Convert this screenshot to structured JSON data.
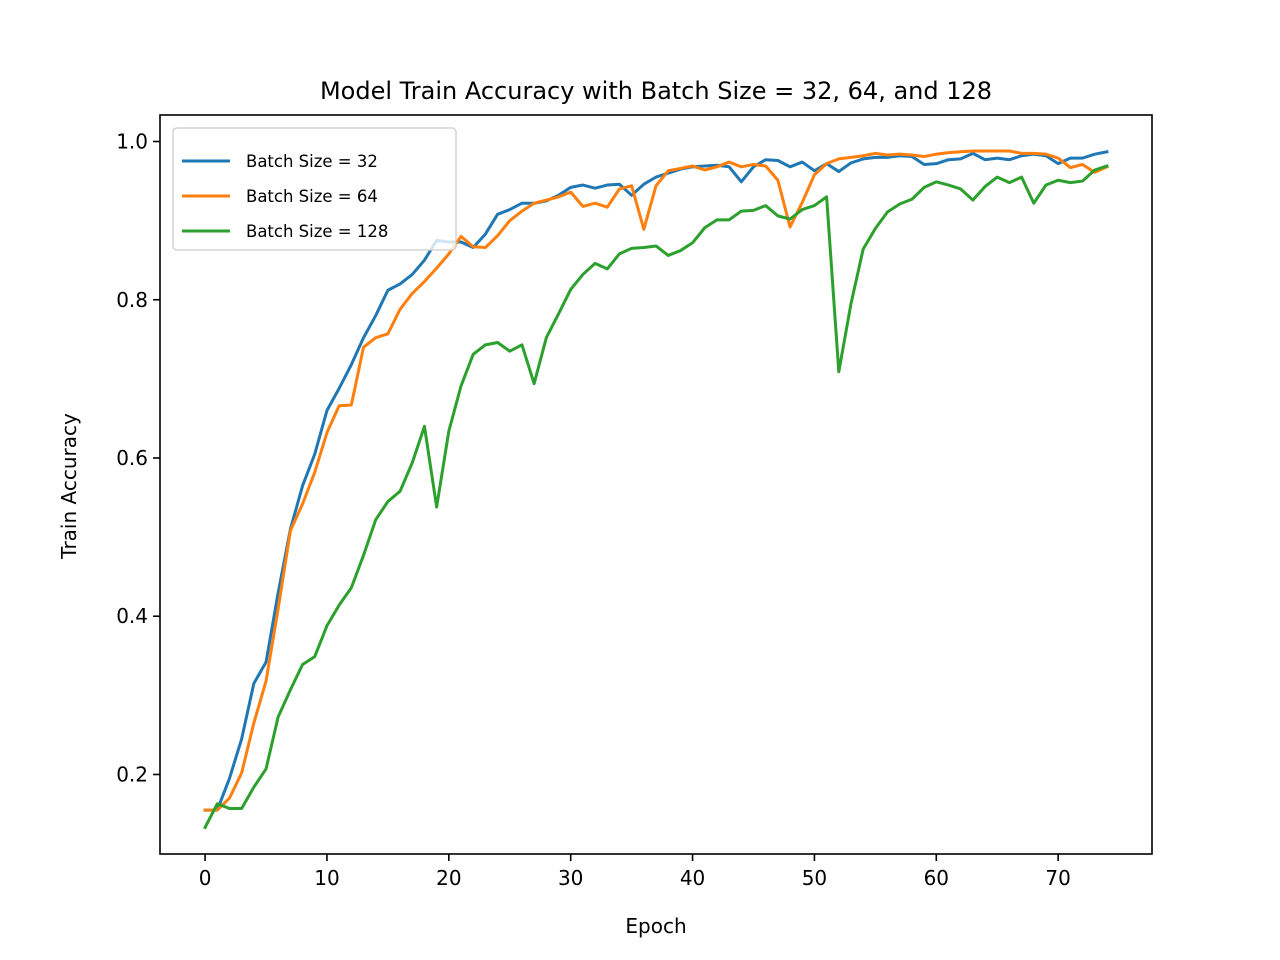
{
  "chart_data": {
    "type": "line",
    "title": "Model Train Accuracy with Batch Size = 32, 64, and 128",
    "xlabel": "Epoch",
    "ylabel": "Train Accuracy",
    "xlim": [
      -3.7,
      77.7
    ],
    "ylim": [
      0.0995,
      1.0335
    ],
    "xticks": [
      0,
      10,
      20,
      30,
      40,
      50,
      60,
      70
    ],
    "xtick_labels": [
      "0",
      "10",
      "20",
      "30",
      "40",
      "50",
      "60",
      "70"
    ],
    "yticks": [
      0.2,
      0.4,
      0.6,
      0.8,
      1.0
    ],
    "ytick_labels": [
      "0.2",
      "0.4",
      "0.6",
      "0.8",
      "1.0"
    ],
    "grid": false,
    "legend_position": "upper-left",
    "x": [
      0,
      1,
      2,
      3,
      4,
      5,
      6,
      7,
      8,
      9,
      10,
      11,
      12,
      13,
      14,
      15,
      16,
      17,
      18,
      19,
      20,
      21,
      22,
      23,
      24,
      25,
      26,
      27,
      28,
      29,
      30,
      31,
      32,
      33,
      34,
      35,
      36,
      37,
      38,
      39,
      40,
      41,
      42,
      43,
      44,
      45,
      46,
      47,
      48,
      49,
      50,
      51,
      52,
      53,
      54,
      55,
      56,
      57,
      58,
      59,
      60,
      61,
      62,
      63,
      64,
      65,
      66,
      67,
      68,
      69,
      70,
      71,
      72,
      73,
      74
    ],
    "series": [
      {
        "name": "Batch Size = 32",
        "color": "#1f77b4",
        "values": [
          0.155,
          0.155,
          0.195,
          0.245,
          0.315,
          0.342,
          0.43,
          0.51,
          0.565,
          0.605,
          0.66,
          0.688,
          0.718,
          0.752,
          0.78,
          0.812,
          0.82,
          0.832,
          0.85,
          0.875,
          0.873,
          0.873,
          0.866,
          0.883,
          0.908,
          0.914,
          0.922,
          0.922,
          0.925,
          0.932,
          0.942,
          0.945,
          0.941,
          0.945,
          0.946,
          0.932,
          0.946,
          0.955,
          0.96,
          0.965,
          0.968,
          0.969,
          0.97,
          0.968,
          0.949,
          0.968,
          0.977,
          0.976,
          0.968,
          0.974,
          0.963,
          0.972,
          0.962,
          0.973,
          0.978,
          0.98,
          0.98,
          0.982,
          0.981,
          0.971,
          0.972,
          0.977,
          0.978,
          0.985,
          0.977,
          0.979,
          0.977,
          0.982,
          0.984,
          0.982,
          0.972,
          0.979,
          0.979,
          0.984,
          0.987
        ]
      },
      {
        "name": "Batch Size = 64",
        "color": "#ff7f0e",
        "values": [
          0.155,
          0.155,
          0.17,
          0.202,
          0.265,
          0.318,
          0.41,
          0.508,
          0.542,
          0.582,
          0.632,
          0.666,
          0.667,
          0.74,
          0.752,
          0.757,
          0.788,
          0.808,
          0.823,
          0.84,
          0.858,
          0.88,
          0.867,
          0.866,
          0.881,
          0.9,
          0.912,
          0.922,
          0.926,
          0.93,
          0.936,
          0.918,
          0.922,
          0.917,
          0.94,
          0.944,
          0.889,
          0.944,
          0.963,
          0.966,
          0.969,
          0.964,
          0.968,
          0.974,
          0.968,
          0.971,
          0.969,
          0.951,
          0.892,
          0.923,
          0.958,
          0.972,
          0.978,
          0.98,
          0.982,
          0.985,
          0.983,
          0.984,
          0.983,
          0.981,
          0.984,
          0.986,
          0.987,
          0.988,
          0.988,
          0.988,
          0.988,
          0.985,
          0.985,
          0.984,
          0.979,
          0.967,
          0.971,
          0.961,
          0.968
        ]
      },
      {
        "name": "Batch Size = 128",
        "color": "#2ca02c",
        "values": [
          0.133,
          0.163,
          0.157,
          0.157,
          0.184,
          0.207,
          0.273,
          0.307,
          0.339,
          0.349,
          0.388,
          0.414,
          0.436,
          0.477,
          0.522,
          0.545,
          0.558,
          0.594,
          0.64,
          0.538,
          0.634,
          0.691,
          0.731,
          0.743,
          0.746,
          0.735,
          0.743,
          0.694,
          0.752,
          0.782,
          0.813,
          0.832,
          0.846,
          0.839,
          0.858,
          0.865,
          0.866,
          0.868,
          0.856,
          0.862,
          0.872,
          0.891,
          0.901,
          0.901,
          0.912,
          0.913,
          0.919,
          0.906,
          0.902,
          0.914,
          0.919,
          0.93,
          0.709,
          0.795,
          0.864,
          0.89,
          0.911,
          0.921,
          0.927,
          0.942,
          0.949,
          0.945,
          0.94,
          0.926,
          0.943,
          0.955,
          0.948,
          0.955,
          0.922,
          0.945,
          0.951,
          0.948,
          0.95,
          0.964,
          0.969
        ]
      }
    ]
  }
}
